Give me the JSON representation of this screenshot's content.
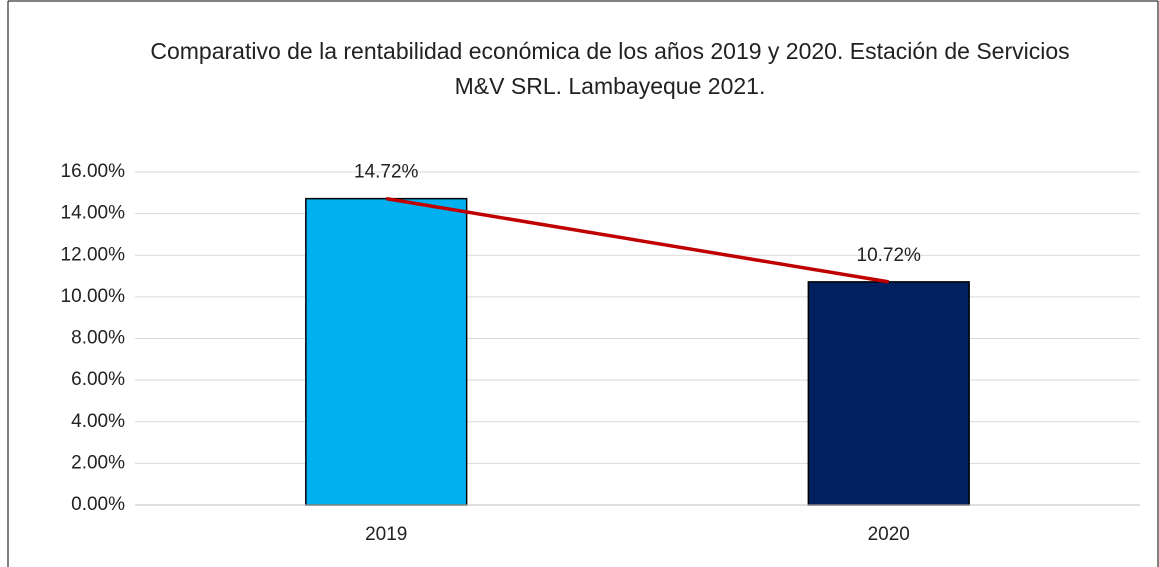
{
  "chart_data": {
    "type": "bar",
    "title": "Comparativo de la rentabilidad económica de los años 2019 y 2020. Estación de Servicios M&V SRL. Lambayeque 2021.",
    "categories": [
      "2019",
      "2020"
    ],
    "values": [
      14.72,
      10.72
    ],
    "value_labels": [
      "14.72%",
      "10.72%"
    ],
    "colors": [
      "#00b0f0",
      "#002060"
    ],
    "line_color": "#c00000",
    "ylim": [
      0,
      16
    ],
    "yticks": [
      {
        "value": 0,
        "label": "0.00%"
      },
      {
        "value": 2,
        "label": "2.00%"
      },
      {
        "value": 4,
        "label": "4.00%"
      },
      {
        "value": 6,
        "label": "6.00%"
      },
      {
        "value": 8,
        "label": "8.00%"
      },
      {
        "value": 10,
        "label": "10.00%"
      },
      {
        "value": 12,
        "label": "12.00%"
      },
      {
        "value": 14,
        "label": "14.00%"
      },
      {
        "value": 16,
        "label": "16.00%"
      }
    ],
    "grid": true
  }
}
